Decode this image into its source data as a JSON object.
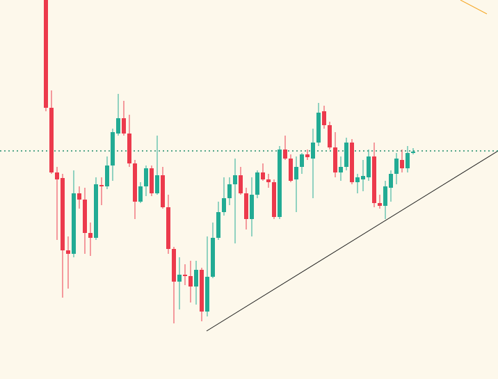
{
  "chart_data": {
    "type": "candlestick",
    "up_color": "#22ab94",
    "down_color": "#ec3a4c",
    "price_line": 328,
    "price_line_color": "#1b8a6b",
    "ylim": [
      0,
      545
    ],
    "open": [
      545,
      390,
      297,
      289,
      185,
      180,
      267,
      258,
      210,
      203,
      279,
      277,
      307,
      353,
      375,
      353,
      310,
      255,
      277,
      303,
      267,
      293,
      247,
      187,
      140,
      150,
      148,
      133,
      157,
      97,
      147,
      203,
      240,
      260,
      280,
      293,
      267,
      230,
      265,
      297,
      287,
      283,
      233,
      330,
      317,
      287,
      305,
      323,
      317,
      340,
      385,
      365,
      333,
      297,
      305,
      340,
      283,
      287,
      290,
      320,
      253,
      249,
      275,
      295,
      315,
      303,
      325
    ],
    "high": [
      545,
      415,
      305,
      295,
      205,
      300,
      277,
      275,
      225,
      290,
      290,
      320,
      360,
      410,
      400,
      380,
      315,
      283,
      307,
      307,
      350,
      305,
      265,
      190,
      175,
      165,
      170,
      170,
      160,
      205,
      225,
      255,
      290,
      290,
      317,
      305,
      275,
      290,
      300,
      310,
      295,
      287,
      335,
      350,
      323,
      320,
      325,
      330,
      360,
      397,
      393,
      370,
      355,
      320,
      347,
      345,
      295,
      315,
      330,
      340,
      265,
      285,
      300,
      325,
      330,
      335,
      332
    ],
    "low": [
      385,
      295,
      200,
      117,
      130,
      175,
      245,
      180,
      177,
      200,
      250,
      273,
      285,
      350,
      350,
      305,
      230,
      253,
      263,
      263,
      265,
      245,
      180,
      80,
      100,
      135,
      110,
      107,
      83,
      90,
      145,
      200,
      235,
      250,
      195,
      265,
      215,
      205,
      260,
      285,
      275,
      230,
      230,
      315,
      283,
      240,
      295,
      315,
      260,
      335,
      360,
      330,
      290,
      285,
      300,
      280,
      267,
      270,
      285,
      247,
      245,
      230,
      255,
      280,
      297,
      297,
      323
    ],
    "close": [
      390,
      297,
      287,
      185,
      180,
      267,
      258,
      210,
      203,
      280,
      277,
      307,
      355,
      375,
      353,
      310,
      255,
      277,
      303,
      267,
      293,
      247,
      187,
      140,
      150,
      148,
      133,
      157,
      97,
      147,
      203,
      240,
      260,
      280,
      293,
      267,
      230,
      265,
      297,
      287,
      283,
      233,
      330,
      317,
      285,
      305,
      323,
      319,
      340,
      383,
      365,
      333,
      297,
      305,
      340,
      283,
      290,
      292,
      320,
      253,
      249,
      277,
      295,
      317,
      303,
      325,
      327
    ]
  }
}
